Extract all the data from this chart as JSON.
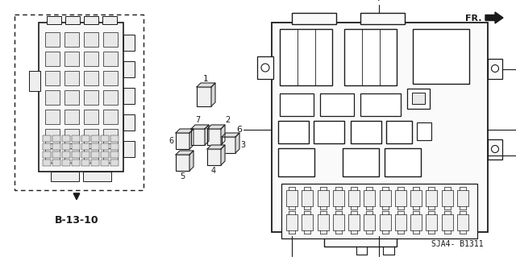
{
  "bg_color": "#ffffff",
  "line_color": "#1a1a1a",
  "fig_width": 6.4,
  "fig_height": 3.19,
  "dpi": 100,
  "bottom_text": "SJA4- B1311",
  "ref_label": "B-13-10",
  "fr_label": "FR."
}
